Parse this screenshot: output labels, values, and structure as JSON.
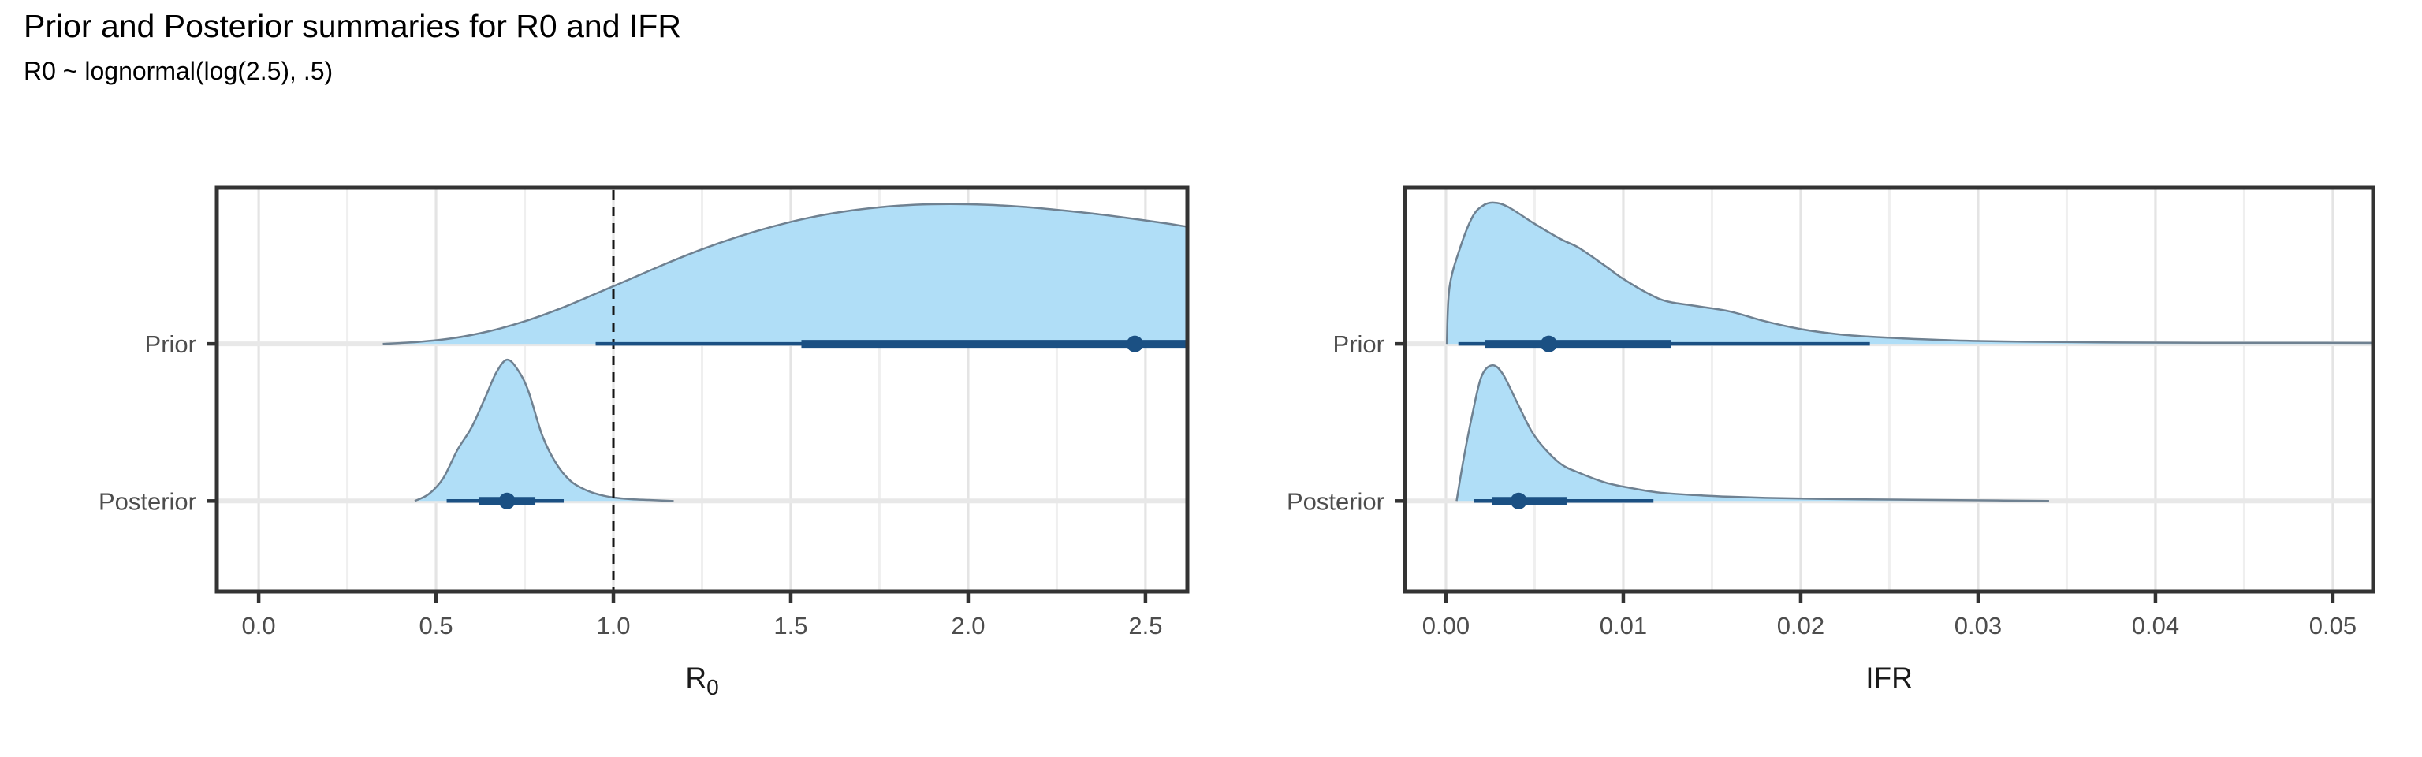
{
  "header": {
    "title": "Prior and Posterior summaries for R0 and IFR",
    "subtitle": "R0 ~ lognormal(log(2.5), .5)"
  },
  "colors": {
    "background": "#ffffff",
    "slab_fill": "#b0def7",
    "slab_outline": "#6f8191",
    "interval": "#1b5083",
    "panel_border": "#333333",
    "grid_major": "#e4e4e4",
    "grid_minor": "#efefef",
    "row_grid": "#e8e8e8",
    "axis_text": "#4d4d4d",
    "axis_title_text": "#1a1a1a",
    "tick_mark": "#333333",
    "ref_line": "#141414"
  },
  "chart_data": [
    {
      "type": "area",
      "subtype": "halfeye-density-with-intervals",
      "xlabel": "R0",
      "xlabel_main": "R",
      "xlabel_sub": "0",
      "ylabels": [
        "Prior",
        "Posterior"
      ],
      "xlim": [
        -0.118,
        2.618
      ],
      "xticks": [
        0.0,
        0.5,
        1.0,
        1.5,
        2.0,
        2.5
      ],
      "xtick_labels": [
        "0.0",
        "0.5",
        "1.0",
        "1.5",
        "2.0",
        "2.5"
      ],
      "xminor": [
        0.25,
        0.75,
        1.25,
        1.75,
        2.25
      ],
      "ref_line_x": 1.0,
      "grid": "on",
      "legend": "none",
      "rows": [
        {
          "label": "Prior",
          "point": 2.47,
          "interval66": [
            1.53,
            2.618
          ],
          "interval95": [
            0.95,
            2.618
          ],
          "interval_clipped_right": true,
          "density_x": [
            0.35,
            0.45,
            0.55,
            0.65,
            0.75,
            0.85,
            0.95,
            1.05,
            1.15,
            1.25,
            1.35,
            1.45,
            1.55,
            1.65,
            1.75,
            1.85,
            1.95,
            2.05,
            2.15,
            2.25,
            2.35,
            2.45,
            2.55,
            2.618
          ],
          "density_h": [
            0.0,
            0.014,
            0.041,
            0.09,
            0.16,
            0.25,
            0.355,
            0.462,
            0.57,
            0.67,
            0.757,
            0.831,
            0.892,
            0.937,
            0.967,
            0.985,
            0.99,
            0.985,
            0.971,
            0.949,
            0.923,
            0.891,
            0.856,
            0.829
          ]
        },
        {
          "label": "Posterior",
          "point": 0.7,
          "interval66": [
            0.62,
            0.78
          ],
          "interval95": [
            0.53,
            0.86
          ],
          "interval_clipped_right": false,
          "density_x": [
            0.44,
            0.48,
            0.52,
            0.56,
            0.6,
            0.64,
            0.67,
            0.7,
            0.73,
            0.76,
            0.8,
            0.84,
            0.88,
            0.92,
            0.96,
            1.0,
            1.05,
            1.1,
            1.17
          ],
          "density_h": [
            0.0,
            0.05,
            0.16,
            0.36,
            0.52,
            0.74,
            0.91,
            1.0,
            0.93,
            0.78,
            0.46,
            0.26,
            0.14,
            0.08,
            0.045,
            0.025,
            0.013,
            0.007,
            0.0
          ]
        }
      ]
    },
    {
      "type": "area",
      "subtype": "halfeye-density-with-intervals",
      "xlabel": "IFR",
      "xlabel_main": "IFR",
      "xlabel_sub": "",
      "ylabels": [
        "Prior",
        "Posterior"
      ],
      "xlim": [
        -0.00231,
        0.05227
      ],
      "xticks": [
        0.0,
        0.01,
        0.02,
        0.03,
        0.04,
        0.05
      ],
      "xtick_labels": [
        "0.00",
        "0.01",
        "0.02",
        "0.03",
        "0.04",
        "0.05"
      ],
      "xminor": [
        0.005,
        0.015,
        0.025,
        0.035,
        0.045
      ],
      "ref_line_x": null,
      "grid": "on",
      "legend": "none",
      "rows": [
        {
          "label": "Prior",
          "point": 0.0058,
          "interval66": [
            0.0022,
            0.0127
          ],
          "interval95": [
            0.0007,
            0.0239
          ],
          "interval_clipped_right": false,
          "density_x": [
            5e-05,
            0.0002,
            0.0008,
            0.0015,
            0.0021,
            0.0027,
            0.0035,
            0.005,
            0.0065,
            0.0075,
            0.009,
            0.01,
            0.0115,
            0.0125,
            0.014,
            0.016,
            0.018,
            0.02,
            0.022,
            0.024,
            0.027,
            0.03,
            0.034,
            0.038,
            0.043,
            0.048,
            0.0523
          ],
          "density_h": [
            0.0,
            0.4,
            0.68,
            0.9,
            0.98,
            1.0,
            0.97,
            0.85,
            0.74,
            0.68,
            0.55,
            0.46,
            0.35,
            0.3,
            0.27,
            0.23,
            0.16,
            0.105,
            0.07,
            0.05,
            0.032,
            0.02,
            0.014,
            0.01,
            0.008,
            0.008,
            0.007
          ]
        },
        {
          "label": "Posterior",
          "point": 0.0041,
          "interval66": [
            0.0026,
            0.0068
          ],
          "interval95": [
            0.0016,
            0.0117
          ],
          "interval_clipped_right": false,
          "density_x": [
            0.0006,
            0.001,
            0.0015,
            0.002,
            0.0026,
            0.0032,
            0.004,
            0.0048,
            0.0055,
            0.0065,
            0.0075,
            0.009,
            0.0105,
            0.012,
            0.014,
            0.016,
            0.018,
            0.021,
            0.025,
            0.029,
            0.034
          ],
          "density_h": [
            0.0,
            0.3,
            0.62,
            0.88,
            0.96,
            0.9,
            0.7,
            0.5,
            0.38,
            0.26,
            0.2,
            0.13,
            0.09,
            0.06,
            0.042,
            0.03,
            0.022,
            0.015,
            0.01,
            0.006,
            0.0
          ]
        }
      ]
    }
  ]
}
